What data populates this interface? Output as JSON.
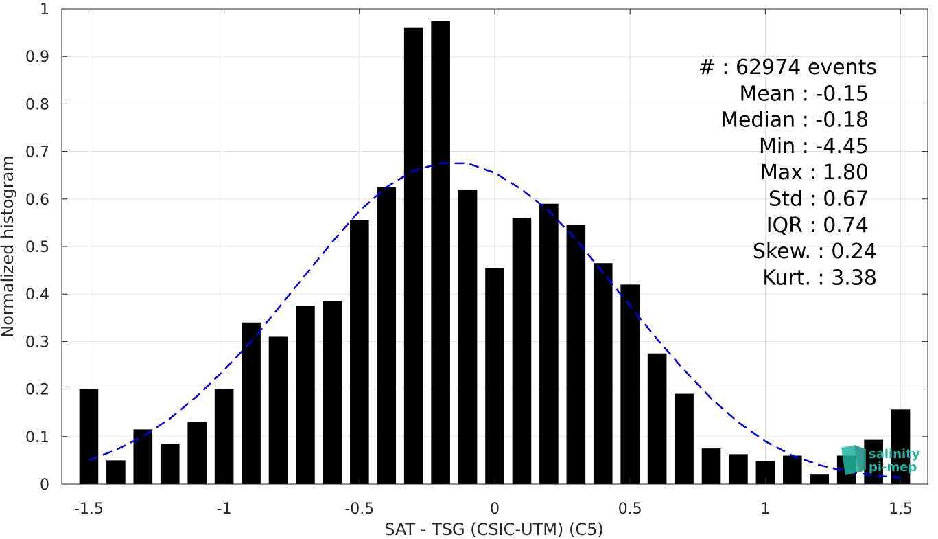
{
  "chart_data": {
    "type": "bar",
    "xlabel": "SAT - TSG (CSIC-UTM) (C5)",
    "ylabel": "Normalized histogram",
    "xlim": [
      -1.6,
      1.6
    ],
    "ylim": [
      0,
      1
    ],
    "grid": true,
    "xticks": [
      -1.5,
      -1,
      -0.5,
      0,
      0.5,
      1,
      1.5
    ],
    "xtick_labels": [
      "-1.5",
      "-1",
      "-0.5",
      "0",
      "0.5",
      "1",
      "1.5"
    ],
    "yticks": [
      0,
      0.1,
      0.2,
      0.3,
      0.4,
      0.5,
      0.6,
      0.7,
      0.8,
      0.9,
      1
    ],
    "ytick_labels": [
      "0",
      "0.1",
      "0.2",
      "0.3",
      "0.4",
      "0.5",
      "0.6",
      "0.7",
      "0.8",
      "0.9",
      "1"
    ],
    "bar_color": "#000000",
    "bar_width": 0.07,
    "x": [
      -1.5,
      -1.4,
      -1.3,
      -1.2,
      -1.1,
      -1.0,
      -0.9,
      -0.8,
      -0.7,
      -0.6,
      -0.5,
      -0.4,
      -0.3,
      -0.2,
      -0.1,
      0.0,
      0.1,
      0.2,
      0.3,
      0.4,
      0.5,
      0.6,
      0.7,
      0.8,
      0.9,
      1.0,
      1.1,
      1.2,
      1.3,
      1.4,
      1.5
    ],
    "values": [
      0.2,
      0.05,
      0.115,
      0.085,
      0.13,
      0.2,
      0.34,
      0.31,
      0.375,
      0.385,
      0.555,
      0.625,
      0.96,
      0.975,
      0.62,
      0.455,
      0.56,
      0.59,
      0.545,
      0.465,
      0.42,
      0.275,
      0.19,
      0.075,
      0.063,
      0.048,
      0.06,
      0.02,
      0.06,
      0.093,
      0.157
    ],
    "fit_curve": {
      "color": "#0000ee",
      "style": "dashed",
      "x": [
        -1.5,
        -1.4,
        -1.3,
        -1.2,
        -1.1,
        -1.0,
        -0.9,
        -0.8,
        -0.7,
        -0.6,
        -0.5,
        -0.4,
        -0.3,
        -0.2,
        -0.1,
        0.0,
        0.1,
        0.2,
        0.3,
        0.4,
        0.5,
        0.6,
        0.7,
        0.8,
        0.9,
        1.0,
        1.1,
        1.2,
        1.3,
        1.4,
        1.5
      ],
      "y": [
        0.05,
        0.072,
        0.1,
        0.138,
        0.185,
        0.24,
        0.3,
        0.37,
        0.44,
        0.51,
        0.575,
        0.625,
        0.66,
        0.675,
        0.675,
        0.655,
        0.62,
        0.575,
        0.515,
        0.445,
        0.375,
        0.305,
        0.24,
        0.18,
        0.13,
        0.09,
        0.06,
        0.04,
        0.027,
        0.018,
        0.014
      ]
    },
    "stats": [
      "#  : 62974 events",
      "Mean : -0.15",
      "Median : -0.18",
      "Min : -4.45",
      "Max : 1.80",
      "Std : 0.67",
      "IQR : 0.74",
      "Skew. : 0.24",
      "Kurt. : 3.38"
    ]
  },
  "logo": {
    "line1": "salinity",
    "line2": "pi-mep",
    "color": "#1fb5a0"
  }
}
